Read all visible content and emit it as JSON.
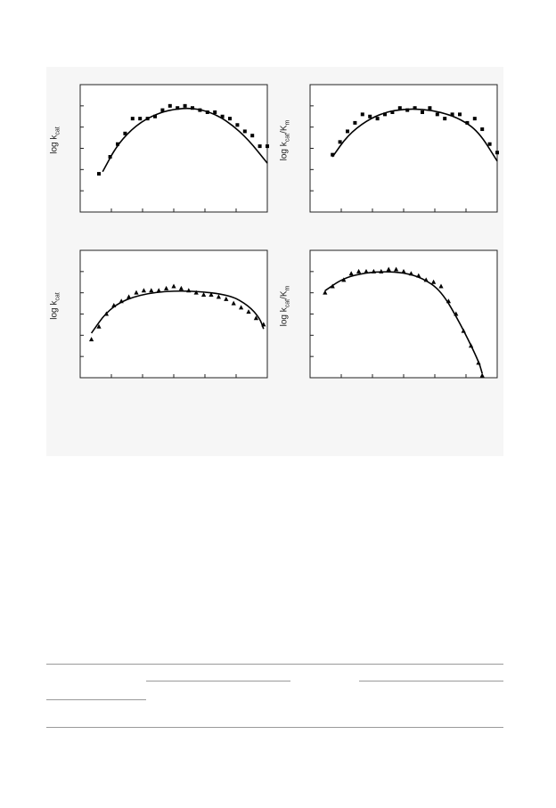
{
  "colors": {
    "background": "#f6f6f6",
    "ink": "#000000",
    "frame": "#222222"
  },
  "panels": [
    {
      "name": "top-left",
      "ylabel_main": "log k",
      "ylabel_sub": "cat",
      "ylabel_rest": "",
      "marker": "square"
    },
    {
      "name": "top-right",
      "ylabel_main": "log k",
      "ylabel_sub": "cat",
      "ylabel_rest": "/K",
      "ylabel_sub2": "m",
      "marker": "square"
    },
    {
      "name": "bottom-left",
      "ylabel_main": "log k",
      "ylabel_sub": "cat",
      "ylabel_rest": "",
      "marker": "triangle"
    },
    {
      "name": "bottom-right",
      "ylabel_main": "log k",
      "ylabel_sub": "cat",
      "ylabel_rest": "/K",
      "ylabel_sub2": "m",
      "marker": "triangle"
    }
  ],
  "chart_data": [
    {
      "type": "scatter",
      "title": "",
      "xlabel": "",
      "ylabel": "log kcat",
      "xlim": [
        0,
        10
      ],
      "ylim": [
        0,
        6
      ],
      "marker": "square",
      "points": [
        [
          0.5,
          1.8
        ],
        [
          0.8,
          2.6
        ],
        [
          1.0,
          3.2
        ],
        [
          1.2,
          3.7
        ],
        [
          1.4,
          4.4
        ],
        [
          1.6,
          4.4
        ],
        [
          1.8,
          4.4
        ],
        [
          2.0,
          4.5
        ],
        [
          2.2,
          4.8
        ],
        [
          2.4,
          5.0
        ],
        [
          2.6,
          4.9
        ],
        [
          2.8,
          5.0
        ],
        [
          3.0,
          4.9
        ],
        [
          3.2,
          4.8
        ],
        [
          3.4,
          4.7
        ],
        [
          3.6,
          4.7
        ],
        [
          3.8,
          4.5
        ],
        [
          4.0,
          4.4
        ],
        [
          4.2,
          4.1
        ],
        [
          4.4,
          3.8
        ],
        [
          4.6,
          3.6
        ],
        [
          4.8,
          3.1
        ],
        [
          5.0,
          3.1
        ]
      ],
      "curve": [
        [
          0.6,
          1.9
        ],
        [
          1.0,
          3.2
        ],
        [
          1.5,
          4.1
        ],
        [
          2.0,
          4.6
        ],
        [
          2.5,
          4.85
        ],
        [
          3.0,
          4.9
        ],
        [
          3.5,
          4.7
        ],
        [
          4.0,
          4.2
        ],
        [
          4.5,
          3.4
        ],
        [
          5.0,
          2.3
        ]
      ]
    },
    {
      "type": "scatter",
      "title": "",
      "xlabel": "",
      "ylabel": "log kcat/Km",
      "xlim": [
        0,
        10
      ],
      "ylim": [
        0,
        6
      ],
      "marker": "square",
      "points": [
        [
          0.6,
          2.7
        ],
        [
          0.8,
          3.3
        ],
        [
          1.0,
          3.8
        ],
        [
          1.2,
          4.2
        ],
        [
          1.4,
          4.6
        ],
        [
          1.6,
          4.5
        ],
        [
          1.8,
          4.4
        ],
        [
          2.0,
          4.6
        ],
        [
          2.2,
          4.7
        ],
        [
          2.4,
          4.9
        ],
        [
          2.6,
          4.8
        ],
        [
          2.8,
          4.9
        ],
        [
          3.0,
          4.7
        ],
        [
          3.2,
          4.9
        ],
        [
          3.4,
          4.6
        ],
        [
          3.6,
          4.4
        ],
        [
          3.8,
          4.6
        ],
        [
          4.0,
          4.6
        ],
        [
          4.2,
          4.2
        ],
        [
          4.4,
          4.4
        ],
        [
          4.6,
          3.9
        ],
        [
          4.8,
          3.2
        ],
        [
          5.0,
          2.8
        ]
      ],
      "curve": [
        [
          0.6,
          2.6
        ],
        [
          1.0,
          3.6
        ],
        [
          1.5,
          4.3
        ],
        [
          2.0,
          4.7
        ],
        [
          2.5,
          4.85
        ],
        [
          3.0,
          4.85
        ],
        [
          3.5,
          4.7
        ],
        [
          4.0,
          4.4
        ],
        [
          4.5,
          3.8
        ],
        [
          5.0,
          2.4
        ]
      ]
    },
    {
      "type": "scatter",
      "title": "",
      "xlabel": "",
      "ylabel": "log kcat",
      "xlim": [
        0,
        10
      ],
      "ylim": [
        0,
        6
      ],
      "marker": "triangle",
      "points": [
        [
          0.3,
          1.8
        ],
        [
          0.5,
          2.4
        ],
        [
          0.7,
          3.0
        ],
        [
          0.9,
          3.4
        ],
        [
          1.1,
          3.6
        ],
        [
          1.3,
          3.8
        ],
        [
          1.5,
          4.0
        ],
        [
          1.7,
          4.1
        ],
        [
          1.9,
          4.1
        ],
        [
          2.1,
          4.1
        ],
        [
          2.3,
          4.2
        ],
        [
          2.5,
          4.3
        ],
        [
          2.7,
          4.2
        ],
        [
          2.9,
          4.1
        ],
        [
          3.1,
          4.0
        ],
        [
          3.3,
          3.9
        ],
        [
          3.5,
          3.9
        ],
        [
          3.7,
          3.8
        ],
        [
          3.9,
          3.7
        ],
        [
          4.1,
          3.5
        ],
        [
          4.3,
          3.3
        ],
        [
          4.5,
          3.1
        ],
        [
          4.7,
          2.8
        ],
        [
          4.9,
          2.5
        ]
      ],
      "curve": [
        [
          0.3,
          2.1
        ],
        [
          0.7,
          3.1
        ],
        [
          1.2,
          3.7
        ],
        [
          2.0,
          4.05
        ],
        [
          3.0,
          4.1
        ],
        [
          4.0,
          3.9
        ],
        [
          4.5,
          3.4
        ],
        [
          4.8,
          2.8
        ],
        [
          4.9,
          2.3
        ]
      ]
    },
    {
      "type": "scatter",
      "title": "",
      "xlabel": "",
      "ylabel": "log kcat/Km",
      "xlim": [
        0,
        10
      ],
      "ylim": [
        0,
        6
      ],
      "marker": "triangle",
      "points": [
        [
          0.4,
          4.0
        ],
        [
          0.6,
          4.3
        ],
        [
          0.9,
          4.6
        ],
        [
          1.1,
          4.9
        ],
        [
          1.3,
          5.0
        ],
        [
          1.5,
          5.0
        ],
        [
          1.7,
          5.0
        ],
        [
          1.9,
          5.0
        ],
        [
          2.1,
          5.1
        ],
        [
          2.3,
          5.1
        ],
        [
          2.5,
          5.0
        ],
        [
          2.7,
          4.9
        ],
        [
          2.9,
          4.8
        ],
        [
          3.1,
          4.6
        ],
        [
          3.3,
          4.5
        ],
        [
          3.5,
          4.3
        ],
        [
          3.7,
          3.6
        ],
        [
          3.9,
          3.0
        ],
        [
          4.1,
          2.2
        ],
        [
          4.3,
          1.5
        ],
        [
          4.5,
          0.7
        ],
        [
          4.6,
          0.1
        ]
      ],
      "curve": [
        [
          0.4,
          4.1
        ],
        [
          0.9,
          4.7
        ],
        [
          1.5,
          4.95
        ],
        [
          2.0,
          5.0
        ],
        [
          2.5,
          4.95
        ],
        [
          3.0,
          4.7
        ],
        [
          3.5,
          4.1
        ],
        [
          4.0,
          2.6
        ],
        [
          4.5,
          0.8
        ],
        [
          4.6,
          0.2
        ]
      ]
    }
  ]
}
